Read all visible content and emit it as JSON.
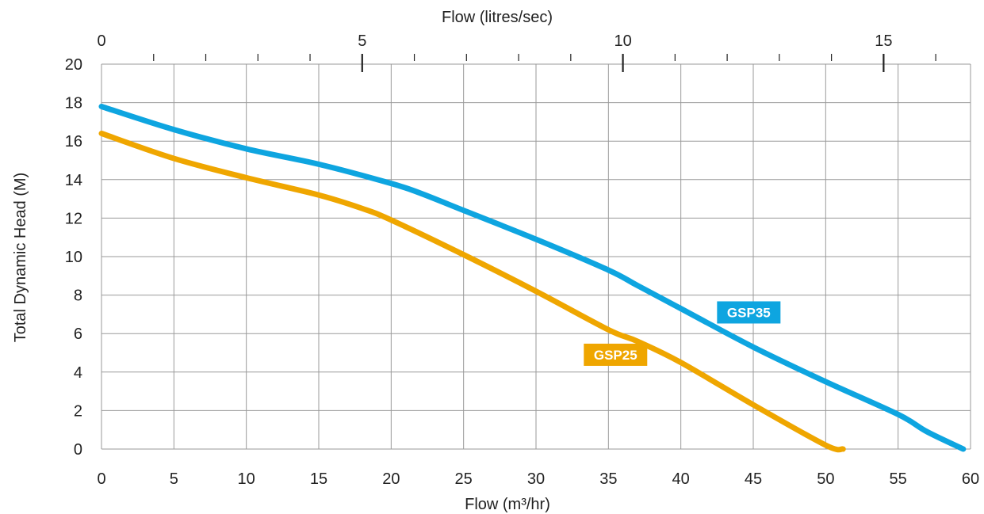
{
  "chart_data": {
    "type": "line",
    "title": "",
    "xlabel": "Flow (m³/hr)",
    "ylabel": "Total Dynamic Head (M)",
    "top_xlabel": "Flow (litres/sec)",
    "xlim": [
      0,
      60
    ],
    "ylim": [
      0,
      20
    ],
    "top_xlim": [
      0,
      16.667
    ],
    "x_ticks": [
      "0",
      "5",
      "10",
      "15",
      "20",
      "25",
      "30",
      "35",
      "40",
      "45",
      "50",
      "55",
      "60"
    ],
    "y_ticks": [
      "0",
      "2",
      "4",
      "6",
      "8",
      "10",
      "12",
      "14",
      "16",
      "18",
      "20"
    ],
    "top_x_major_ticks": [
      "0",
      "5",
      "10",
      "15"
    ],
    "top_x_minor_ticks": [
      1,
      2,
      3,
      4,
      6,
      7,
      8,
      9,
      11,
      12,
      13,
      14,
      16
    ],
    "grid": true,
    "series": [
      {
        "name": "GSP35",
        "color": "#0ea5e0",
        "label_at": [
          42.5,
          7.1
        ],
        "points": [
          [
            0,
            17.8
          ],
          [
            5,
            16.6
          ],
          [
            10,
            15.6
          ],
          [
            15,
            14.8
          ],
          [
            20,
            13.8
          ],
          [
            22,
            13.3
          ],
          [
            25,
            12.4
          ],
          [
            30,
            10.9
          ],
          [
            35,
            9.3
          ],
          [
            37,
            8.5
          ],
          [
            40,
            7.3
          ],
          [
            45,
            5.3
          ],
          [
            50,
            3.5
          ],
          [
            55,
            1.8
          ],
          [
            57,
            0.9
          ],
          [
            59.5,
            0
          ]
        ]
      },
      {
        "name": "GSP25",
        "color": "#efa600",
        "label_at": [
          33.3,
          4.9
        ],
        "points": [
          [
            0,
            16.4
          ],
          [
            5,
            15.1
          ],
          [
            10,
            14.1
          ],
          [
            15,
            13.2
          ],
          [
            18,
            12.5
          ],
          [
            20,
            11.9
          ],
          [
            25,
            10.1
          ],
          [
            30,
            8.2
          ],
          [
            35,
            6.2
          ],
          [
            37,
            5.6
          ],
          [
            40,
            4.5
          ],
          [
            45,
            2.3
          ],
          [
            50,
            0.2
          ],
          [
            51.2,
            0
          ]
        ]
      }
    ]
  }
}
